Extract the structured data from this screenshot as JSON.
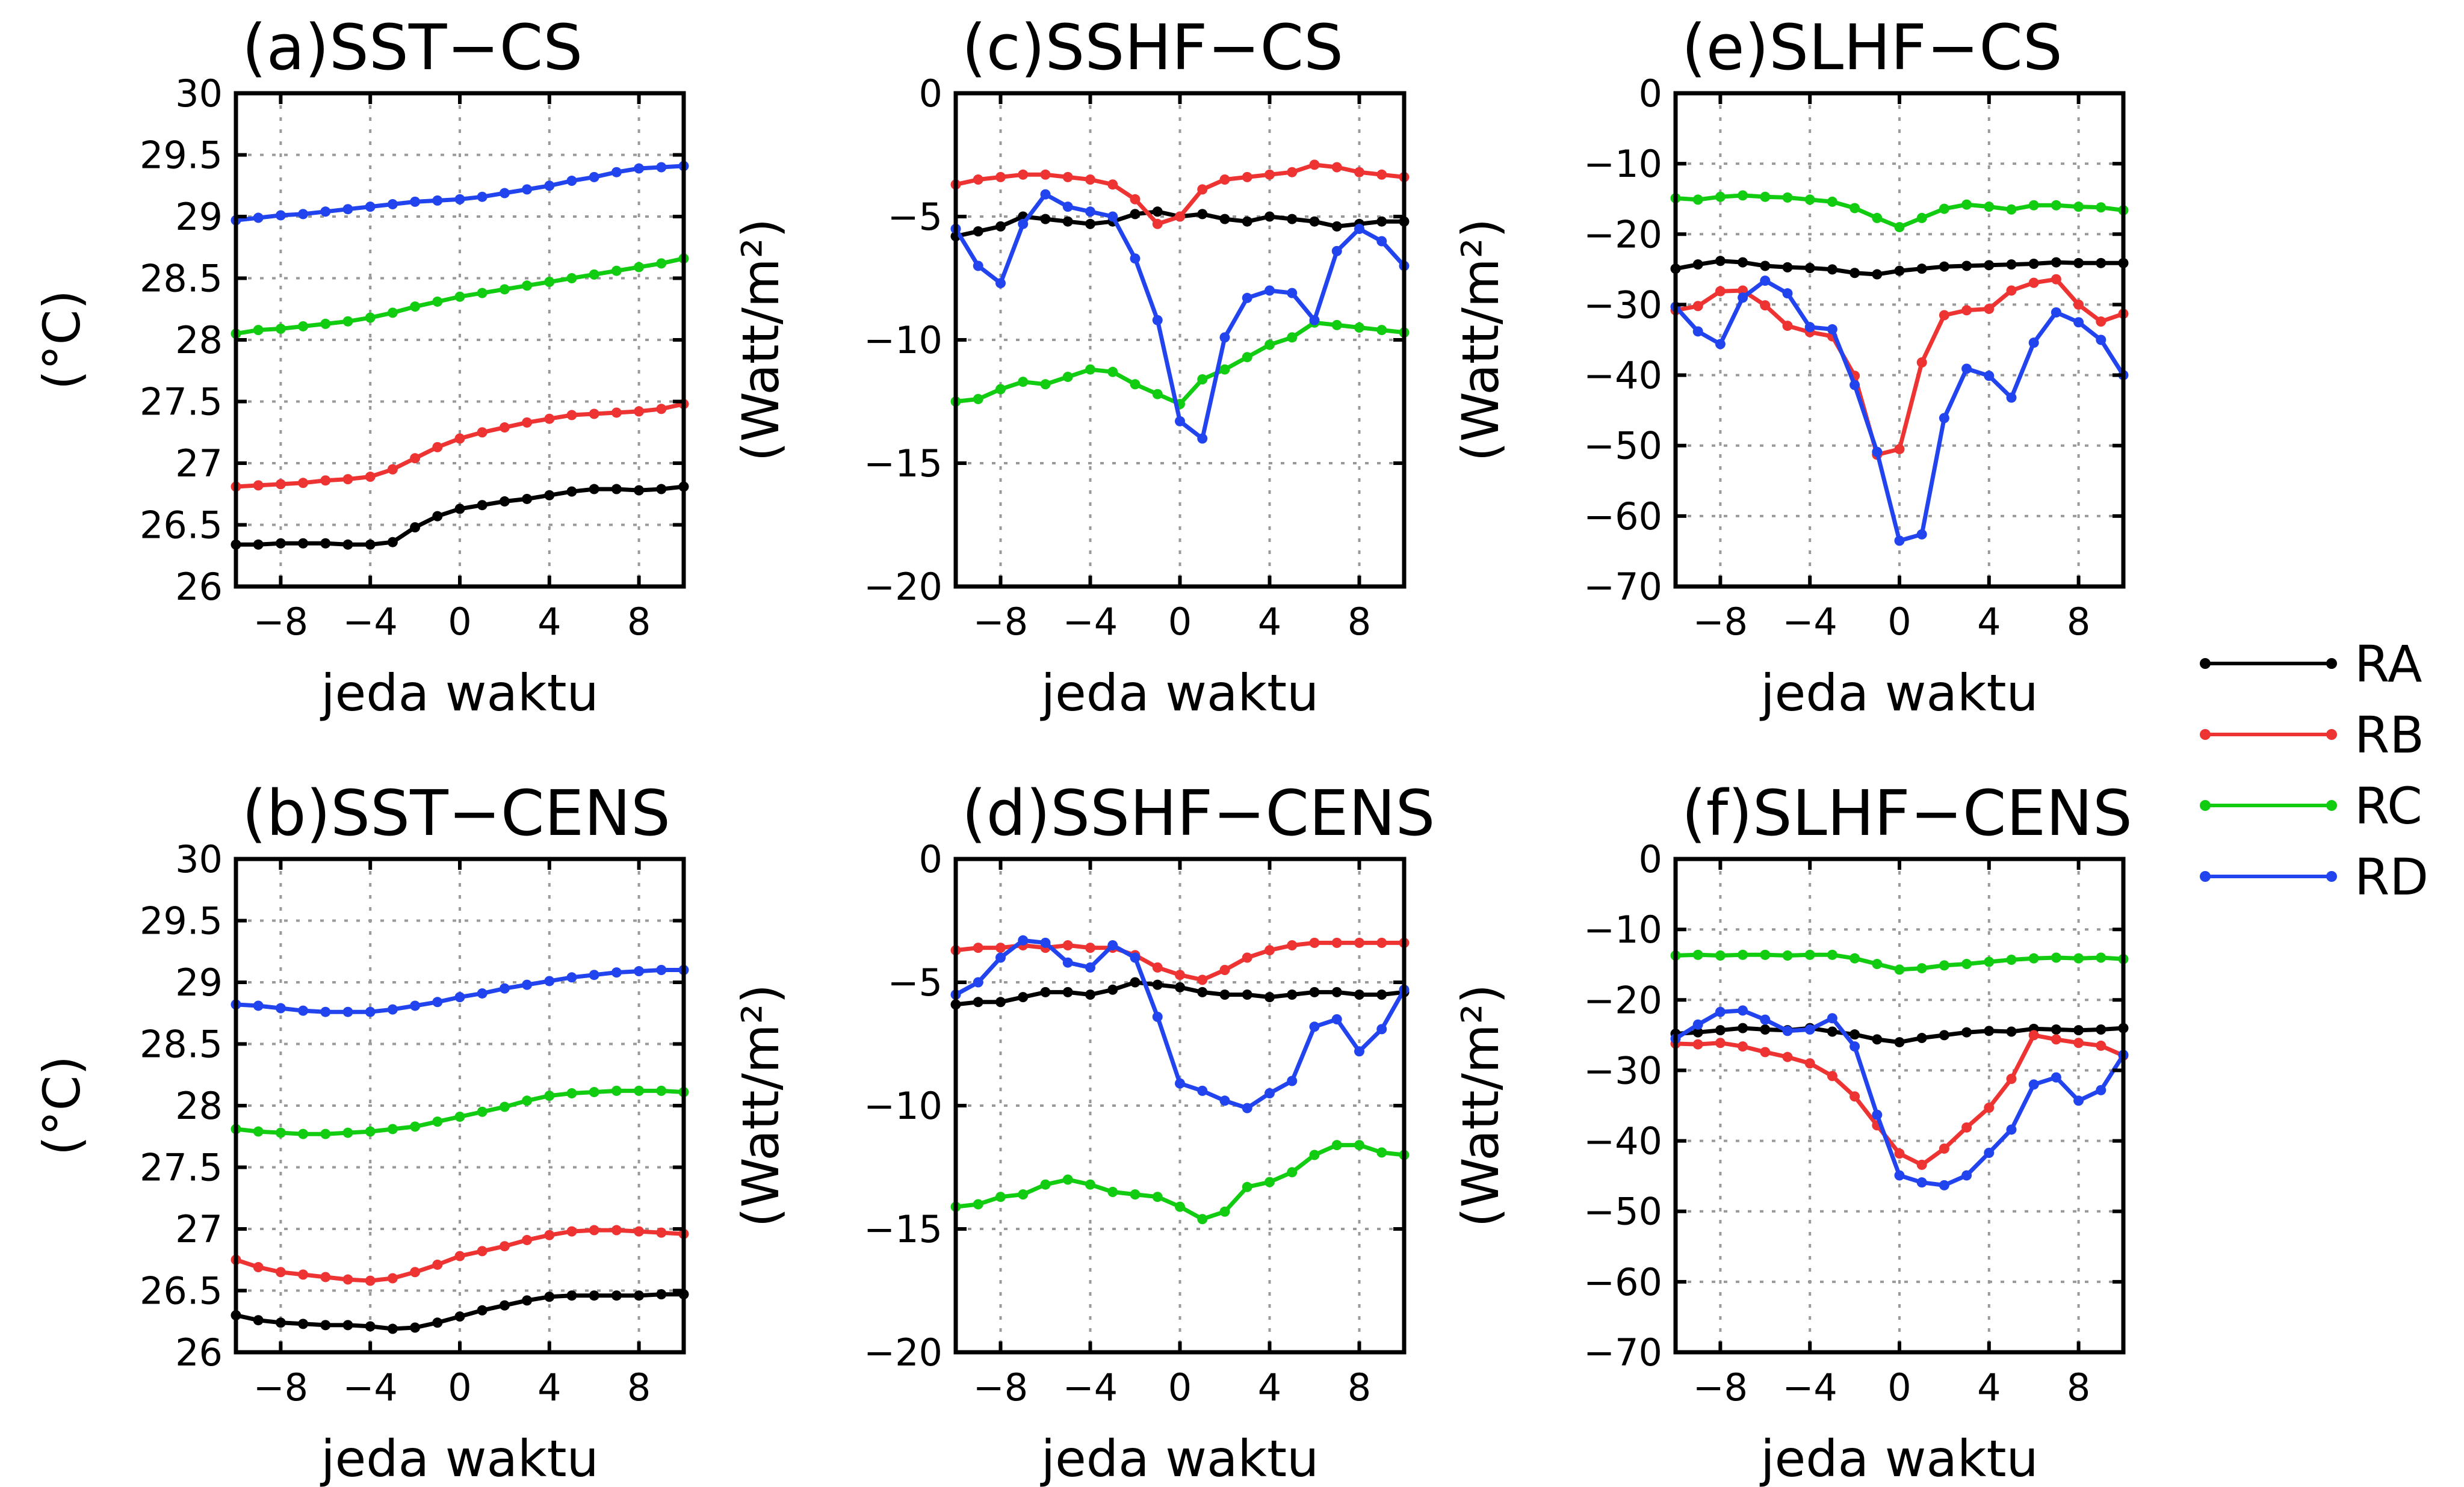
{
  "colors": {
    "RA": "#000000",
    "RB": "#ee3333",
    "RC": "#11cc11",
    "RD": "#2244ee"
  },
  "legend": [
    "RA",
    "RB",
    "RC",
    "RD"
  ],
  "chart_data": [
    {
      "id": "a",
      "type": "line",
      "title": "(a)SST−CS",
      "xlabel": "jeda waktu",
      "ylabel": "(°C)",
      "x": [
        -10,
        -9,
        -8,
        -7,
        -6,
        -5,
        -4,
        -3,
        -2,
        -1,
        0,
        1,
        2,
        3,
        4,
        5,
        6,
        7,
        8,
        9,
        10
      ],
      "xticks": [
        -8,
        -4,
        0,
        4,
        8
      ],
      "xtick_labels": [
        "−8",
        "−4",
        "0",
        "4",
        "8"
      ],
      "ylim": [
        26,
        30
      ],
      "yticks": [
        26,
        26.5,
        27,
        27.5,
        28,
        28.5,
        29,
        29.5,
        30
      ],
      "ytick_labels": [
        "26",
        "26.5",
        "27",
        "27.5",
        "28",
        "28.5",
        "29",
        "29.5",
        "30"
      ],
      "grid": true,
      "series": [
        {
          "name": "RA",
          "values": [
            26.34,
            26.34,
            26.35,
            26.35,
            26.35,
            26.34,
            26.34,
            26.36,
            26.48,
            26.57,
            26.63,
            26.66,
            26.69,
            26.71,
            26.74,
            26.77,
            26.79,
            26.79,
            26.78,
            26.79,
            26.81
          ]
        },
        {
          "name": "RB",
          "values": [
            26.81,
            26.82,
            26.83,
            26.84,
            26.86,
            26.87,
            26.89,
            26.95,
            27.04,
            27.13,
            27.2,
            27.25,
            27.29,
            27.33,
            27.36,
            27.39,
            27.4,
            27.41,
            27.42,
            27.44,
            27.48
          ]
        },
        {
          "name": "RC",
          "values": [
            28.05,
            28.08,
            28.09,
            28.11,
            28.13,
            28.15,
            28.18,
            28.22,
            28.27,
            28.31,
            28.35,
            28.38,
            28.41,
            28.44,
            28.47,
            28.5,
            28.53,
            28.56,
            28.59,
            28.62,
            28.66
          ]
        },
        {
          "name": "RD",
          "values": [
            28.97,
            28.99,
            29.01,
            29.02,
            29.04,
            29.06,
            29.08,
            29.1,
            29.12,
            29.13,
            29.14,
            29.16,
            29.19,
            29.22,
            29.25,
            29.29,
            29.32,
            29.36,
            29.39,
            29.4,
            29.41
          ]
        }
      ]
    },
    {
      "id": "b",
      "type": "line",
      "title": "(b)SST−CENS",
      "xlabel": "jeda waktu",
      "ylabel": "(°C)",
      "x": [
        -10,
        -9,
        -8,
        -7,
        -6,
        -5,
        -4,
        -3,
        -2,
        -1,
        0,
        1,
        2,
        3,
        4,
        5,
        6,
        7,
        8,
        9,
        10
      ],
      "xticks": [
        -8,
        -4,
        0,
        4,
        8
      ],
      "xtick_labels": [
        "−8",
        "−4",
        "0",
        "4",
        "8"
      ],
      "ylim": [
        26,
        30
      ],
      "yticks": [
        26,
        26.5,
        27,
        27.5,
        28,
        28.5,
        29,
        29.5,
        30
      ],
      "ytick_labels": [
        "26",
        "26.5",
        "27",
        "27.5",
        "28",
        "28.5",
        "29",
        "29.5",
        "30"
      ],
      "grid": true,
      "series": [
        {
          "name": "RA",
          "values": [
            26.3,
            26.26,
            26.24,
            26.23,
            26.22,
            26.22,
            26.21,
            26.19,
            26.2,
            26.24,
            26.29,
            26.34,
            26.38,
            26.42,
            26.45,
            26.46,
            26.46,
            26.46,
            26.46,
            26.47,
            26.47
          ]
        },
        {
          "name": "RB",
          "values": [
            26.75,
            26.69,
            26.65,
            26.63,
            26.61,
            26.59,
            26.58,
            26.6,
            26.65,
            26.71,
            26.78,
            26.82,
            26.86,
            26.91,
            26.95,
            26.98,
            26.99,
            26.99,
            26.98,
            26.97,
            26.96
          ]
        },
        {
          "name": "RC",
          "values": [
            27.81,
            27.79,
            27.78,
            27.77,
            27.77,
            27.78,
            27.79,
            27.81,
            27.83,
            27.87,
            27.91,
            27.95,
            27.99,
            28.04,
            28.08,
            28.1,
            28.11,
            28.12,
            28.12,
            28.12,
            28.11
          ]
        },
        {
          "name": "RD",
          "values": [
            28.82,
            28.81,
            28.79,
            28.77,
            28.76,
            28.76,
            28.76,
            28.78,
            28.81,
            28.84,
            28.88,
            28.91,
            28.95,
            28.98,
            29.01,
            29.04,
            29.06,
            29.08,
            29.09,
            29.1,
            29.1
          ]
        }
      ]
    },
    {
      "id": "c",
      "type": "line",
      "title": "(c)SSHF−CS",
      "xlabel": "jeda waktu",
      "ylabel": "(Watt/m²)",
      "x": [
        -10,
        -9,
        -8,
        -7,
        -6,
        -5,
        -4,
        -3,
        -2,
        -1,
        0,
        1,
        2,
        3,
        4,
        5,
        6,
        7,
        8,
        9,
        10
      ],
      "xticks": [
        -8,
        -4,
        0,
        4,
        8
      ],
      "xtick_labels": [
        "−8",
        "−4",
        "0",
        "4",
        "8"
      ],
      "ylim": [
        -20,
        0
      ],
      "yticks": [
        -20,
        -15,
        -10,
        -5,
        0
      ],
      "ytick_labels": [
        "−20",
        "−15",
        "−10",
        "−5",
        "0"
      ],
      "grid": true,
      "series": [
        {
          "name": "RA",
          "values": [
            -5.8,
            -5.6,
            -5.4,
            -5.0,
            -5.1,
            -5.2,
            -5.3,
            -5.2,
            -4.9,
            -4.8,
            -5.0,
            -4.9,
            -5.1,
            -5.2,
            -5.0,
            -5.1,
            -5.2,
            -5.4,
            -5.3,
            -5.2,
            -5.2
          ]
        },
        {
          "name": "RB",
          "values": [
            -3.7,
            -3.5,
            -3.4,
            -3.3,
            -3.3,
            -3.4,
            -3.5,
            -3.7,
            -4.3,
            -5.3,
            -5.0,
            -3.9,
            -3.5,
            -3.4,
            -3.3,
            -3.2,
            -2.9,
            -3.0,
            -3.2,
            -3.3,
            -3.4
          ]
        },
        {
          "name": "RC",
          "values": [
            -12.5,
            -12.4,
            -12.0,
            -11.7,
            -11.8,
            -11.5,
            -11.2,
            -11.3,
            -11.8,
            -12.2,
            -12.6,
            -11.6,
            -11.2,
            -10.7,
            -10.2,
            -9.9,
            -9.3,
            -9.4,
            -9.5,
            -9.6,
            -9.7
          ]
        },
        {
          "name": "RD",
          "values": [
            -5.5,
            -7.0,
            -7.7,
            -5.3,
            -4.1,
            -4.6,
            -4.8,
            -5.0,
            -6.7,
            -9.2,
            -13.3,
            -14.0,
            -9.9,
            -8.3,
            -8.0,
            -8.1,
            -9.2,
            -6.4,
            -5.5,
            -6.0,
            -7.0
          ]
        }
      ]
    },
    {
      "id": "d",
      "type": "line",
      "title": "(d)SSHF−CENS",
      "xlabel": "jeda waktu",
      "ylabel": "(Watt/m²)",
      "x": [
        -10,
        -9,
        -8,
        -7,
        -6,
        -5,
        -4,
        -3,
        -2,
        -1,
        0,
        1,
        2,
        3,
        4,
        5,
        6,
        7,
        8,
        9,
        10
      ],
      "xticks": [
        -8,
        -4,
        0,
        4,
        8
      ],
      "xtick_labels": [
        "−8",
        "−4",
        "0",
        "4",
        "8"
      ],
      "ylim": [
        -20,
        0
      ],
      "yticks": [
        -20,
        -15,
        -10,
        -5,
        0
      ],
      "ytick_labels": [
        "−20",
        "−15",
        "−10",
        "−5",
        "0"
      ],
      "grid": true,
      "series": [
        {
          "name": "RA",
          "values": [
            -5.9,
            -5.8,
            -5.8,
            -5.6,
            -5.4,
            -5.4,
            -5.5,
            -5.3,
            -5.0,
            -5.1,
            -5.2,
            -5.4,
            -5.5,
            -5.5,
            -5.6,
            -5.5,
            -5.4,
            -5.4,
            -5.5,
            -5.5,
            -5.4
          ]
        },
        {
          "name": "RB",
          "values": [
            -3.7,
            -3.6,
            -3.6,
            -3.5,
            -3.6,
            -3.5,
            -3.6,
            -3.6,
            -3.9,
            -4.4,
            -4.7,
            -4.9,
            -4.5,
            -4.0,
            -3.7,
            -3.5,
            -3.4,
            -3.4,
            -3.4,
            -3.4,
            -3.4
          ]
        },
        {
          "name": "RC",
          "values": [
            -14.1,
            -14.0,
            -13.7,
            -13.6,
            -13.2,
            -13.0,
            -13.2,
            -13.5,
            -13.6,
            -13.7,
            -14.1,
            -14.6,
            -14.3,
            -13.3,
            -13.1,
            -12.7,
            -12.0,
            -11.6,
            -11.6,
            -11.9,
            -12.0
          ]
        },
        {
          "name": "RD",
          "values": [
            -5.5,
            -5.0,
            -4.0,
            -3.3,
            -3.4,
            -4.2,
            -4.4,
            -3.5,
            -4.0,
            -6.4,
            -9.1,
            -9.4,
            -9.8,
            -10.1,
            -9.5,
            -9.0,
            -6.8,
            -6.5,
            -7.8,
            -6.9,
            -5.3
          ]
        }
      ]
    },
    {
      "id": "e",
      "type": "line",
      "title": "(e)SLHF−CS",
      "xlabel": "jeda waktu",
      "ylabel": "(Watt/m²)",
      "x": [
        -10,
        -9,
        -8,
        -7,
        -6,
        -5,
        -4,
        -3,
        -2,
        -1,
        0,
        1,
        2,
        3,
        4,
        5,
        6,
        7,
        8,
        9,
        10
      ],
      "xticks": [
        -8,
        -4,
        0,
        4,
        8
      ],
      "xtick_labels": [
        "−8",
        "−4",
        "0",
        "4",
        "8"
      ],
      "ylim": [
        -70,
        0
      ],
      "yticks": [
        -70,
        -60,
        -50,
        -40,
        -30,
        -20,
        -10,
        0
      ],
      "ytick_labels": [
        "−70",
        "−60",
        "−50",
        "−40",
        "−30",
        "−20",
        "−10",
        "0"
      ],
      "grid": true,
      "series": [
        {
          "name": "RA",
          "values": [
            -24.9,
            -24.3,
            -23.8,
            -24.0,
            -24.5,
            -24.7,
            -24.8,
            -25.0,
            -25.5,
            -25.7,
            -25.2,
            -24.9,
            -24.6,
            -24.5,
            -24.4,
            -24.3,
            -24.2,
            -24.0,
            -24.1,
            -24.1,
            -24.1
          ]
        },
        {
          "name": "RB",
          "values": [
            -30.8,
            -30.2,
            -28.1,
            -28.0,
            -30.1,
            -33.0,
            -33.9,
            -34.5,
            -40.1,
            -51.3,
            -50.5,
            -38.2,
            -31.5,
            -30.8,
            -30.6,
            -28.0,
            -26.9,
            -26.4,
            -30.0,
            -32.4,
            -31.3
          ]
        },
        {
          "name": "RD",
          "values": [
            -30.3,
            -33.8,
            -35.6,
            -29.0,
            -26.6,
            -28.4,
            -33.2,
            -33.5,
            -41.4,
            -50.9,
            -63.5,
            -62.6,
            -46.1,
            -39.1,
            -40.1,
            -43.2,
            -35.4,
            -31.1,
            -32.5,
            -35.0,
            -40.0
          ]
        },
        {
          "name": "RC",
          "values": [
            -14.9,
            -15.1,
            -14.7,
            -14.5,
            -14.7,
            -14.8,
            -15.1,
            -15.4,
            -16.3,
            -17.7,
            -19.0,
            -17.7,
            -16.4,
            -15.8,
            -16.1,
            -16.5,
            -15.9,
            -15.9,
            -16.1,
            -16.2,
            -16.6
          ]
        }
      ]
    },
    {
      "id": "f",
      "type": "line",
      "title": "(f)SLHF−CENS",
      "xlabel": "jeda waktu",
      "ylabel": "(Watt/m²)",
      "x": [
        -10,
        -9,
        -8,
        -7,
        -6,
        -5,
        -4,
        -3,
        -2,
        -1,
        0,
        1,
        2,
        3,
        4,
        5,
        6,
        7,
        8,
        9,
        10
      ],
      "xticks": [
        -8,
        -4,
        0,
        4,
        8
      ],
      "xtick_labels": [
        "−8",
        "−4",
        "0",
        "4",
        "8"
      ],
      "ylim": [
        -70,
        0
      ],
      "yticks": [
        -70,
        -60,
        -50,
        -40,
        -30,
        -20,
        -10,
        0
      ],
      "ytick_labels": [
        "−70",
        "−60",
        "−50",
        "−40",
        "−30",
        "−20",
        "−10",
        "0"
      ],
      "grid": true,
      "series": [
        {
          "name": "RA",
          "values": [
            -24.8,
            -24.6,
            -24.3,
            -24.0,
            -24.2,
            -24.3,
            -24.0,
            -24.5,
            -24.9,
            -25.6,
            -26.0,
            -25.4,
            -25.0,
            -24.6,
            -24.4,
            -24.5,
            -24.1,
            -24.2,
            -24.3,
            -24.2,
            -24.0
          ]
        },
        {
          "name": "RB",
          "values": [
            -26.2,
            -26.3,
            -26.1,
            -26.6,
            -27.4,
            -28.1,
            -29.0,
            -30.8,
            -33.7,
            -37.8,
            -41.8,
            -43.4,
            -41.1,
            -38.1,
            -35.3,
            -31.2,
            -25.0,
            -25.6,
            -26.1,
            -26.5,
            -27.9
          ]
        },
        {
          "name": "RD",
          "values": [
            -25.5,
            -23.5,
            -21.7,
            -21.5,
            -22.8,
            -24.4,
            -24.2,
            -22.6,
            -26.6,
            -36.3,
            -44.9,
            -45.9,
            -46.3,
            -44.9,
            -41.7,
            -38.4,
            -32.0,
            -31.0,
            -34.3,
            -32.8,
            -27.8
          ]
        },
        {
          "name": "RC",
          "values": [
            -13.7,
            -13.6,
            -13.7,
            -13.6,
            -13.6,
            -13.7,
            -13.6,
            -13.6,
            -14.1,
            -14.9,
            -15.7,
            -15.5,
            -15.1,
            -14.9,
            -14.6,
            -14.3,
            -14.1,
            -14.0,
            -14.1,
            -14.0,
            -14.2
          ]
        }
      ]
    }
  ]
}
